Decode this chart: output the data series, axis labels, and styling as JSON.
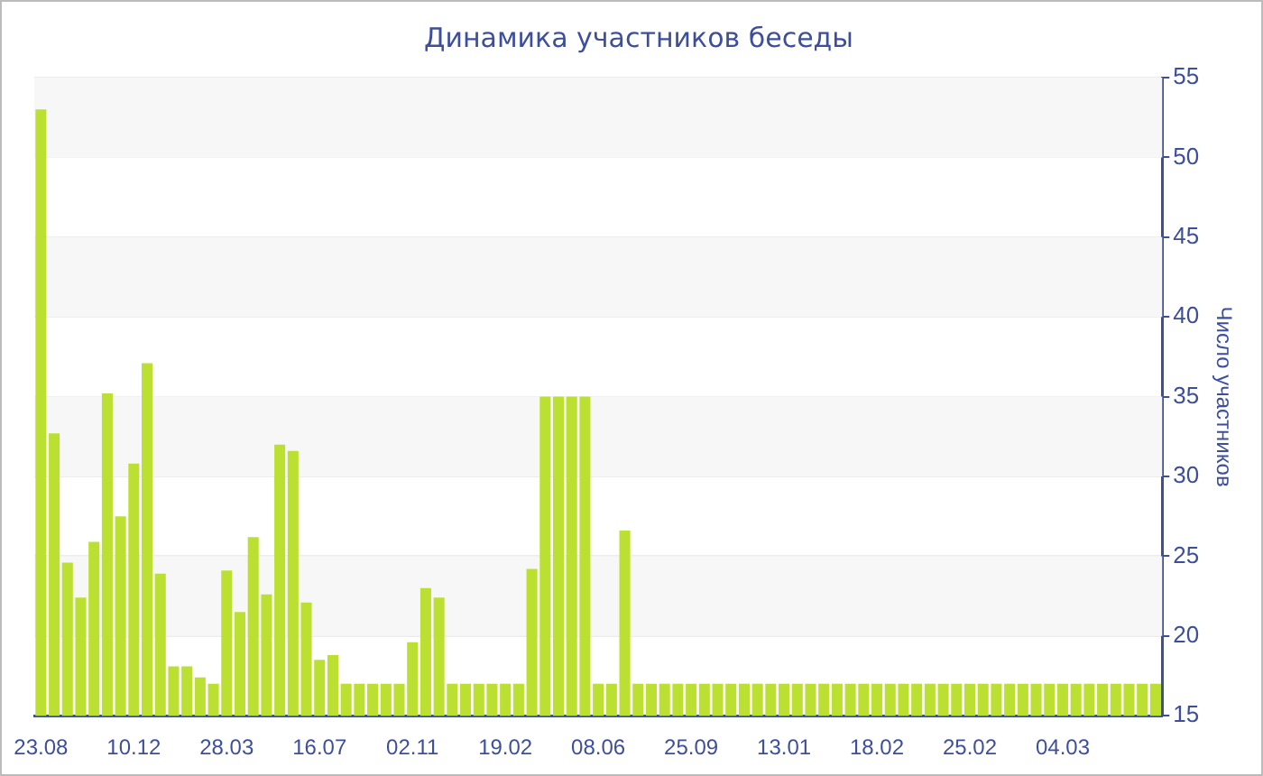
{
  "chart_data": {
    "type": "bar",
    "title": "Динамика участников беседы",
    "ylabel": "Число участников",
    "categories": [
      "23.08",
      null,
      null,
      null,
      null,
      null,
      null,
      "10.12",
      null,
      null,
      null,
      null,
      null,
      null,
      "28.03",
      null,
      null,
      null,
      null,
      null,
      null,
      "16.07",
      null,
      null,
      null,
      null,
      null,
      null,
      "02.11",
      null,
      null,
      null,
      null,
      null,
      null,
      "19.02",
      null,
      null,
      null,
      null,
      null,
      null,
      "08.06",
      null,
      null,
      null,
      null,
      null,
      null,
      "25.09",
      null,
      null,
      null,
      null,
      null,
      null,
      "13.01",
      null,
      null,
      null,
      null,
      null,
      null,
      "18.02",
      null,
      null,
      null,
      null,
      null,
      null,
      "25.02",
      null,
      null,
      null,
      null,
      null,
      null,
      "04.03",
      null,
      null,
      null,
      null,
      null,
      null,
      null
    ],
    "values": [
      53,
      32.7,
      24.6,
      22.4,
      25.9,
      35.2,
      27.5,
      30.8,
      37.1,
      23.9,
      18.1,
      18.1,
      17.4,
      17,
      24.1,
      21.5,
      26.2,
      22.6,
      32,
      31.6,
      22.1,
      18.5,
      18.8,
      17,
      17,
      17,
      17,
      17,
      19.6,
      23,
      22.4,
      17,
      17,
      17,
      17,
      17,
      17,
      24.2,
      35,
      35,
      35,
      35,
      17,
      17,
      26.6,
      17,
      17,
      17,
      17,
      17,
      17,
      17,
      17,
      17,
      17,
      17,
      17,
      17,
      17,
      17,
      17,
      17,
      17,
      17,
      17,
      17,
      17,
      17,
      17,
      17,
      17,
      17,
      17,
      17,
      17,
      17,
      17,
      17,
      17,
      17,
      17,
      17,
      17,
      17,
      17
    ],
    "color": "#bce032",
    "ylim": [
      15,
      55
    ],
    "yticks": [
      15,
      20,
      25,
      30,
      35,
      40,
      45,
      50,
      55
    ],
    "grid": "y",
    "legend": false
  }
}
